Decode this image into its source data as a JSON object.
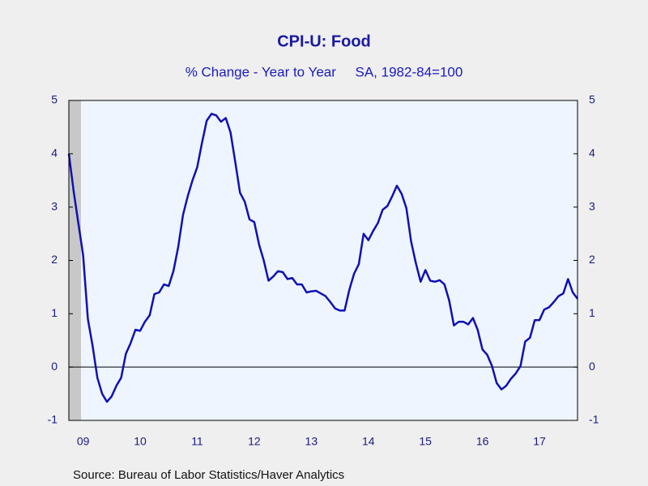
{
  "chart_data": {
    "type": "line",
    "title": "CPI-U: Food",
    "subtitle": "% Change - Year to Year     SA, 1982-84=100",
    "source": "Source:  Bureau of Labor Statistics/Haver Analytics",
    "categories": [
      null,
      null,
      null,
      "09",
      null,
      null,
      null,
      null,
      null,
      null,
      null,
      null,
      null,
      null,
      null,
      "10",
      null,
      null,
      null,
      null,
      null,
      null,
      null,
      null,
      null,
      null,
      null,
      "11",
      null,
      null,
      null,
      null,
      null,
      null,
      null,
      null,
      null,
      null,
      null,
      "12",
      null,
      null,
      null,
      null,
      null,
      null,
      null,
      null,
      null,
      null,
      null,
      "13",
      null,
      null,
      null,
      null,
      null,
      null,
      null,
      null,
      null,
      null,
      null,
      "14",
      null,
      null,
      null,
      null,
      null,
      null,
      null,
      null,
      null,
      null,
      null,
      "15",
      null,
      null,
      null,
      null,
      null,
      null,
      null,
      null,
      null,
      null,
      null,
      "16",
      null,
      null,
      null,
      null,
      null,
      null,
      null,
      null,
      null,
      null,
      null,
      "17",
      null,
      null,
      null,
      null,
      null,
      null,
      null,
      null
    ],
    "series": [
      {
        "name": "CPI-U: Food",
        "color": "#1010b4",
        "values": [
          4.0,
          3.3,
          2.7,
          2.1,
          0.9,
          0.4,
          -0.2,
          -0.5,
          -0.65,
          -0.55,
          -0.35,
          -0.2,
          0.25,
          0.45,
          0.7,
          0.68,
          0.85,
          0.97,
          1.37,
          1.4,
          1.55,
          1.52,
          1.8,
          2.25,
          2.85,
          3.2,
          3.5,
          3.75,
          4.2,
          4.62,
          4.75,
          4.72,
          4.6,
          4.67,
          4.4,
          3.85,
          3.27,
          3.1,
          2.77,
          2.72,
          2.3,
          2.0,
          1.62,
          1.7,
          1.8,
          1.78,
          1.65,
          1.67,
          1.55,
          1.55,
          1.4,
          1.42,
          1.43,
          1.38,
          1.33,
          1.22,
          1.1,
          1.06,
          1.06,
          1.45,
          1.75,
          1.93,
          2.5,
          2.38,
          2.55,
          2.7,
          2.95,
          3.02,
          3.2,
          3.4,
          3.25,
          2.98,
          2.35,
          1.95,
          1.6,
          1.82,
          1.62,
          1.6,
          1.63,
          1.55,
          1.25,
          0.78,
          0.85,
          0.85,
          0.8,
          0.92,
          0.7,
          0.33,
          0.23,
          0.02,
          -0.3,
          -0.42,
          -0.35,
          -0.22,
          -0.12,
          0.02,
          0.48,
          0.55,
          0.88,
          0.88,
          1.08,
          1.12,
          1.22,
          1.33,
          1.38,
          1.65,
          1.4,
          1.28
        ]
      }
    ],
    "ylim": [
      -1,
      5
    ],
    "yticks": [
      -1,
      0,
      1,
      2,
      3,
      4,
      5
    ],
    "y2lim": [
      -1,
      5
    ],
    "y2ticks": [
      -1,
      0,
      1,
      2,
      3,
      4,
      5
    ]
  }
}
